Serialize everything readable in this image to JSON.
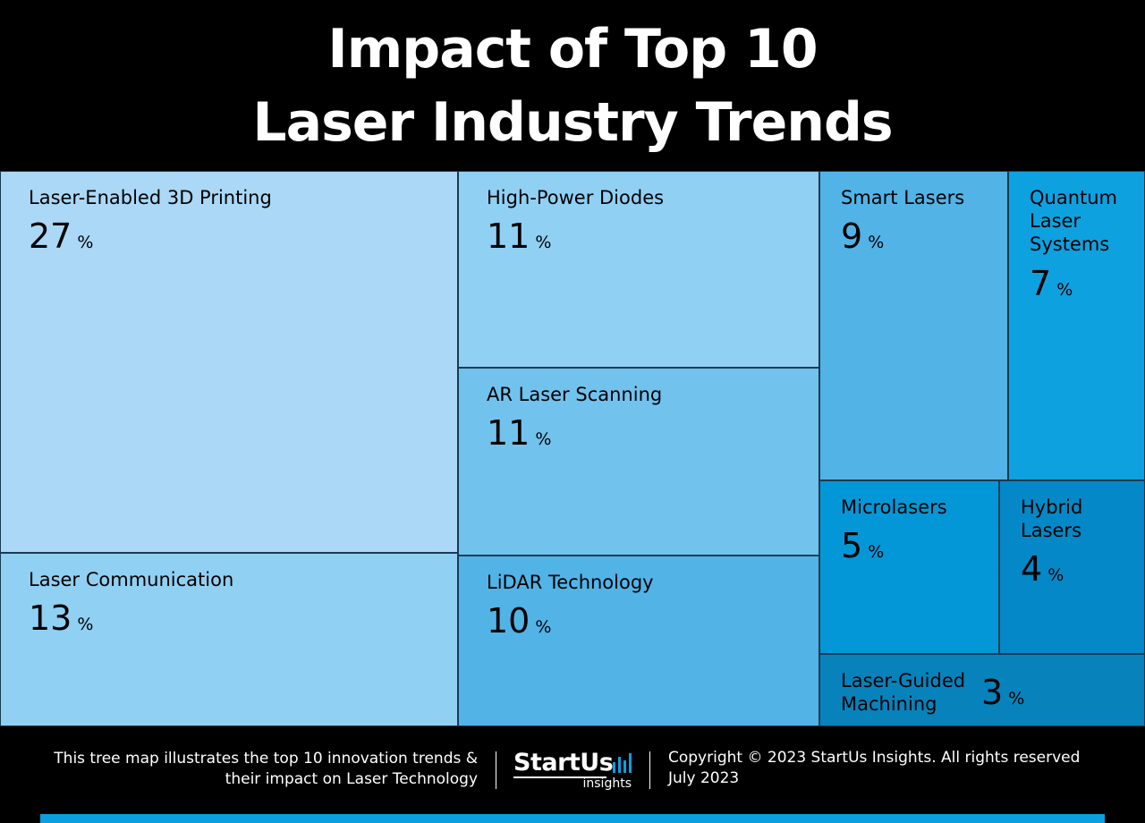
{
  "title": {
    "line1": "Impact of Top 10",
    "line2": "Laser Industry Trends"
  },
  "chart_data": {
    "type": "treemap",
    "unit": "%",
    "items": [
      {
        "label": "Laser-Enabled 3D Printing",
        "value": 27,
        "color": "#aad8f6"
      },
      {
        "label": "Laser Communication",
        "value": 13,
        "color": "#90d0f3"
      },
      {
        "label": "High-Power Diodes",
        "value": 11,
        "color": "#90d0f3"
      },
      {
        "label": "AR Laser Scanning",
        "value": 11,
        "color": "#72c2ee"
      },
      {
        "label": "LiDAR Technology",
        "value": 10,
        "color": "#52b3e7"
      },
      {
        "label": "Smart Lasers",
        "value": 9,
        "color": "#52b3e7"
      },
      {
        "label": "Quantum Laser Systems",
        "value": 7,
        "color": "#0ea1e0"
      },
      {
        "label": "Microlasers",
        "value": 5,
        "color": "#0497d8"
      },
      {
        "label": "Hybrid Lasers",
        "value": 4,
        "color": "#0488c7"
      },
      {
        "label": "Laser-Guided Machining",
        "value": 3,
        "color": "#0782bb"
      }
    ]
  },
  "footer": {
    "description_line1": "This tree map illustrates the top 10 innovation trends &",
    "description_line2": "their impact on Laser Technology",
    "logo_main": "StartUs",
    "logo_sub": "insights",
    "copyright": "Copyright © 2023 StartUs Insights. All rights reserved",
    "date": "July 2023"
  },
  "colors": {
    "background": "#000000",
    "accent": "#0b9fe0",
    "text": "#ffffff"
  }
}
